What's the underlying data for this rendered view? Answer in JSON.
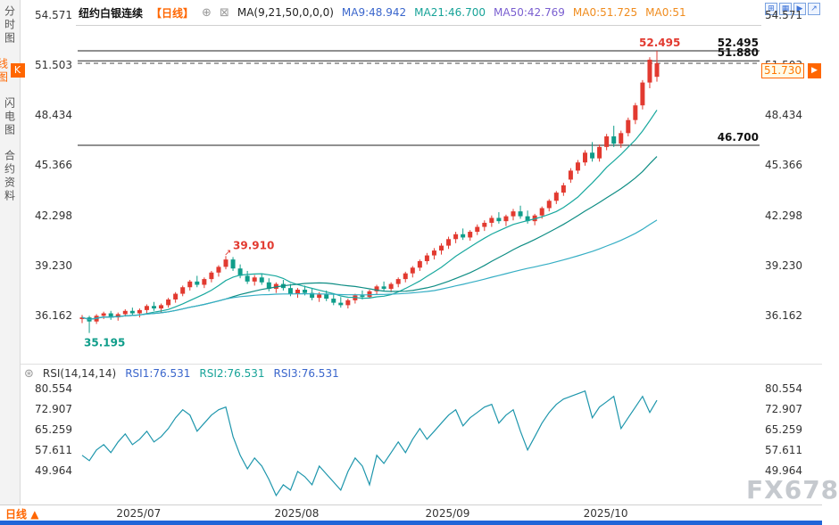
{
  "header": {
    "symbol": "纽约白银连续",
    "period": "【日线】",
    "ma_settings": "MA(9,21,50,0,0,0)",
    "ma9": "MA9:48.942",
    "ma21": "MA21:46.700",
    "ma50": "MA50:42.769",
    "ma0_1": "MA0:51.725",
    "ma0_2": "MA0:51"
  },
  "sidebar": {
    "tabs": [
      {
        "label": "分时图"
      },
      {
        "badge": "K",
        "label": "线图"
      },
      {
        "label": "闪电图"
      },
      {
        "label": "合约资料"
      }
    ]
  },
  "rsi_header": {
    "title": "RSI(14,14,14)",
    "rsi1": "RSI1:76.531",
    "rsi2": "RSI2:76.531",
    "rsi3": "RSI3:76.531"
  },
  "footer": {
    "period_tab": "日线",
    "arrow": "▲"
  },
  "watermark": "FX678",
  "icons": {
    "add": "⊕",
    "remove": "⊠",
    "settings": "⊛",
    "jump": "▶",
    "tools": [
      "⊞",
      "▦",
      "▶",
      "↗"
    ]
  },
  "colors": {
    "accent": "#ff6600",
    "up": "#e23a30",
    "down": "#0f9d8a",
    "ma9": "#18a89e",
    "ma21": "#0e8d84",
    "ma50": "#35aec4",
    "ma9_text": "#3a66cc",
    "ma21_text": "#17a398",
    "ma50_text": "#7a5fd0",
    "ma0_text": "#f08c1e",
    "rsi_line": "#1e96ac",
    "level": "#222222",
    "dashed": "#444444",
    "axis_text": "#333333",
    "icon_blue": "#3f74d6",
    "blue_bar": "#2065d8",
    "watermark": "#c5c9ce"
  },
  "chart_data": [
    {
      "type": "candlestick",
      "title": "纽约白银连续 日线",
      "y_ticks": [
        54.571,
        51.503,
        48.434,
        45.366,
        42.298,
        39.23,
        36.162
      ],
      "x_tick_labels": [
        "2025/07",
        "2025/08",
        "2025/09",
        "2025/10"
      ],
      "x_tick_indices": [
        8,
        30,
        51,
        73
      ],
      "levels": {
        "resistance_high": 52.495,
        "prev_high": 51.88,
        "support": 46.7,
        "last_price": 51.73
      },
      "annotations": [
        {
          "index": 20,
          "price": 39.91,
          "text": "39.910",
          "pos": "above",
          "color": "#e23a30"
        },
        {
          "index": 1,
          "price": 35.195,
          "text": "35.195",
          "pos": "below",
          "color": "#0f9d8a"
        }
      ],
      "overlays": [
        {
          "name": "MA9",
          "period": 9,
          "last": 48.942
        },
        {
          "name": "MA21",
          "period": 21,
          "last": 46.7
        },
        {
          "name": "MA50",
          "period": 50,
          "last": 42.769
        }
      ],
      "ohlc": [
        [
          36.05,
          36.3,
          35.8,
          36.15
        ],
        [
          36.15,
          36.25,
          35.195,
          35.9
        ],
        [
          35.9,
          36.35,
          35.75,
          36.25
        ],
        [
          36.25,
          36.5,
          36.05,
          36.4
        ],
        [
          36.4,
          36.55,
          36.0,
          36.15
        ],
        [
          36.15,
          36.45,
          35.95,
          36.35
        ],
        [
          36.35,
          36.65,
          36.2,
          36.55
        ],
        [
          36.55,
          36.75,
          36.25,
          36.4
        ],
        [
          36.4,
          36.7,
          36.15,
          36.6
        ],
        [
          36.6,
          36.95,
          36.4,
          36.85
        ],
        [
          36.85,
          37.1,
          36.55,
          36.7
        ],
        [
          36.7,
          37.0,
          36.45,
          36.9
        ],
        [
          36.9,
          37.35,
          36.75,
          37.25
        ],
        [
          37.25,
          37.7,
          37.05,
          37.6
        ],
        [
          37.6,
          38.1,
          37.45,
          38.0
        ],
        [
          38.0,
          38.45,
          37.8,
          38.35
        ],
        [
          38.35,
          38.7,
          38.0,
          38.15
        ],
        [
          38.15,
          38.6,
          37.95,
          38.5
        ],
        [
          38.5,
          39.0,
          38.3,
          38.9
        ],
        [
          38.9,
          39.35,
          38.65,
          39.25
        ],
        [
          39.25,
          39.91,
          39.1,
          39.7
        ],
        [
          39.7,
          39.85,
          39.0,
          39.15
        ],
        [
          39.15,
          39.4,
          38.55,
          38.7
        ],
        [
          38.7,
          39.0,
          38.2,
          38.35
        ],
        [
          38.35,
          38.75,
          38.1,
          38.6
        ],
        [
          38.6,
          38.85,
          38.15,
          38.3
        ],
        [
          38.3,
          38.55,
          37.75,
          37.9
        ],
        [
          37.9,
          38.3,
          37.65,
          38.2
        ],
        [
          38.2,
          38.45,
          37.8,
          37.95
        ],
        [
          37.95,
          38.2,
          37.45,
          37.6
        ],
        [
          37.6,
          37.95,
          37.35,
          37.85
        ],
        [
          37.85,
          38.1,
          37.5,
          37.65
        ],
        [
          37.65,
          37.9,
          37.2,
          37.35
        ],
        [
          37.35,
          37.7,
          37.1,
          37.55
        ],
        [
          37.55,
          37.8,
          37.15,
          37.3
        ],
        [
          37.3,
          37.55,
          36.9,
          37.05
        ],
        [
          37.05,
          37.4,
          36.75,
          36.9
        ],
        [
          36.9,
          37.3,
          36.7,
          37.2
        ],
        [
          37.2,
          37.6,
          37.0,
          37.5
        ],
        [
          37.5,
          37.8,
          37.25,
          37.4
        ],
        [
          37.4,
          37.85,
          37.3,
          37.75
        ],
        [
          37.75,
          38.15,
          37.55,
          38.05
        ],
        [
          38.05,
          38.35,
          37.75,
          37.9
        ],
        [
          37.9,
          38.3,
          37.7,
          38.2
        ],
        [
          38.2,
          38.6,
          38.0,
          38.5
        ],
        [
          38.5,
          38.95,
          38.3,
          38.85
        ],
        [
          38.85,
          39.3,
          38.6,
          39.2
        ],
        [
          39.2,
          39.7,
          39.0,
          39.6
        ],
        [
          39.6,
          40.1,
          39.4,
          39.95
        ],
        [
          39.95,
          40.4,
          39.7,
          40.25
        ],
        [
          40.25,
          40.7,
          40.0,
          40.55
        ],
        [
          40.55,
          41.1,
          40.35,
          40.95
        ],
        [
          40.95,
          41.4,
          40.7,
          41.25
        ],
        [
          41.25,
          41.6,
          40.9,
          41.05
        ],
        [
          41.05,
          41.5,
          40.85,
          41.4
        ],
        [
          41.4,
          41.85,
          41.2,
          41.7
        ],
        [
          41.7,
          42.1,
          41.45,
          41.95
        ],
        [
          41.95,
          42.4,
          41.7,
          42.25
        ],
        [
          42.25,
          42.6,
          41.9,
          42.05
        ],
        [
          42.05,
          42.45,
          41.75,
          42.35
        ],
        [
          42.35,
          42.8,
          42.1,
          42.65
        ],
        [
          42.65,
          43.0,
          42.2,
          42.35
        ],
        [
          42.35,
          42.7,
          41.9,
          42.05
        ],
        [
          42.05,
          42.5,
          41.8,
          42.4
        ],
        [
          42.4,
          42.95,
          42.2,
          42.85
        ],
        [
          42.85,
          43.4,
          42.65,
          43.3
        ],
        [
          43.3,
          43.9,
          43.1,
          43.8
        ],
        [
          43.8,
          44.4,
          43.6,
          44.25
        ],
        [
          44.6,
          45.3,
          44.4,
          45.15
        ],
        [
          45.15,
          45.8,
          44.95,
          45.65
        ],
        [
          45.65,
          46.4,
          45.45,
          46.25
        ],
        [
          46.25,
          46.9,
          45.7,
          45.9
        ],
        [
          45.9,
          46.75,
          45.7,
          46.6
        ],
        [
          46.6,
          47.4,
          46.4,
          47.25
        ],
        [
          47.25,
          47.9,
          46.6,
          46.8
        ],
        [
          46.8,
          47.6,
          46.55,
          47.45
        ],
        [
          47.45,
          48.4,
          47.25,
          48.25
        ],
        [
          48.25,
          49.3,
          48.0,
          49.15
        ],
        [
          49.15,
          50.7,
          48.9,
          50.55
        ],
        [
          50.55,
          52.1,
          50.2,
          51.95
        ],
        [
          50.9,
          52.495,
          50.6,
          51.73
        ]
      ]
    },
    {
      "type": "line",
      "title": "RSI(14,14,14)",
      "y_ticks": [
        80.554,
        72.907,
        65.259,
        57.611,
        49.964
      ],
      "last_values": {
        "rsi1": 76.531,
        "rsi2": 76.531,
        "rsi3": 76.531
      },
      "values": [
        56,
        54,
        58,
        60,
        57,
        61,
        64,
        60,
        62,
        65,
        61,
        63,
        66,
        70,
        73,
        71,
        65,
        68,
        71,
        73,
        74,
        63,
        56,
        51,
        55,
        52,
        47,
        41,
        45,
        43,
        50,
        48,
        45,
        52,
        49,
        46,
        43,
        50,
        55,
        52,
        45,
        56,
        53,
        57,
        61,
        57,
        62,
        66,
        62,
        65,
        68,
        71,
        73,
        67,
        70,
        72,
        74,
        75,
        68,
        71,
        73,
        65,
        58,
        63,
        68,
        72,
        75,
        77,
        78,
        79,
        80,
        70,
        74,
        76,
        78,
        66,
        70,
        74,
        78,
        72,
        76.531
      ]
    }
  ]
}
